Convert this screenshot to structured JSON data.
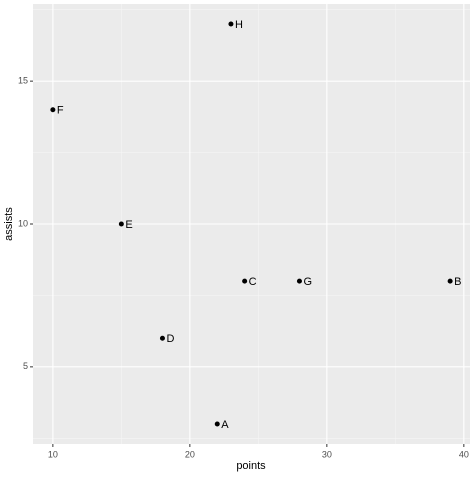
{
  "chart_data": {
    "type": "scatter",
    "x_label": "points",
    "y_label": "assists",
    "labels": [
      "A",
      "B",
      "C",
      "D",
      "E",
      "F",
      "G",
      "H"
    ],
    "x": [
      22,
      39,
      24,
      18,
      15,
      10,
      28,
      23
    ],
    "values": [
      3,
      8,
      8,
      6,
      10,
      14,
      8,
      17
    ],
    "color": "#000000",
    "xlim": [
      8.55,
      40.45
    ],
    "ylim": [
      2.3,
      17.7
    ],
    "xticks": [
      10,
      20,
      30,
      40
    ],
    "yticks": [
      5,
      10,
      15
    ],
    "grid": true
  }
}
